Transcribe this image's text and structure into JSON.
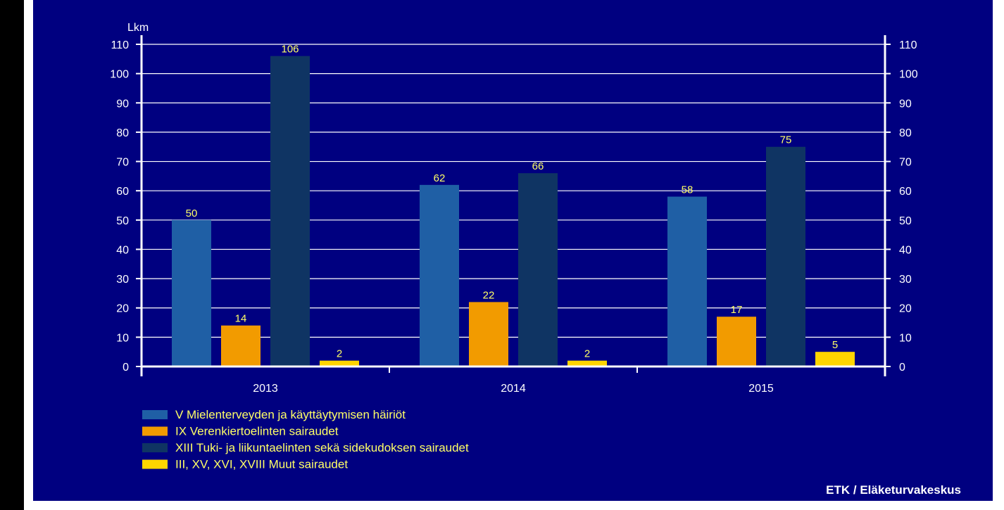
{
  "chart_data": {
    "type": "bar",
    "ylabel": "Lkm",
    "ylim": [
      0,
      110
    ],
    "yticks": [
      0,
      10,
      20,
      30,
      40,
      50,
      60,
      70,
      80,
      90,
      100,
      110
    ],
    "categories": [
      "2013",
      "2014",
      "2015"
    ],
    "series": [
      {
        "name": "V Mielenterveyden ja käyttäytymisen häiriöt",
        "color": "#1f5fa5",
        "values": [
          50,
          62,
          58
        ]
      },
      {
        "name": "IX Verenkiertoelinten sairaudet",
        "color": "#f29b00",
        "values": [
          14,
          22,
          17
        ]
      },
      {
        "name": "XIII Tuki- ja liikuntaelinten sekä sidekudoksen sairaudet",
        "color": "#0f3463",
        "values": [
          106,
          66,
          75
        ]
      },
      {
        "name": "III, XV, XVI, XVIII Muut sairaudet",
        "color": "#ffd500",
        "values": [
          2,
          2,
          5
        ]
      }
    ],
    "grid": true,
    "legend_position": "bottom-left",
    "source": "ETK / Eläketurvakeskus"
  },
  "colors": {
    "background": "#000080",
    "grid": "#ffffff",
    "axis_text": "#ffffff",
    "data_label": "#ffff66",
    "legend_text": "#ffff66"
  }
}
